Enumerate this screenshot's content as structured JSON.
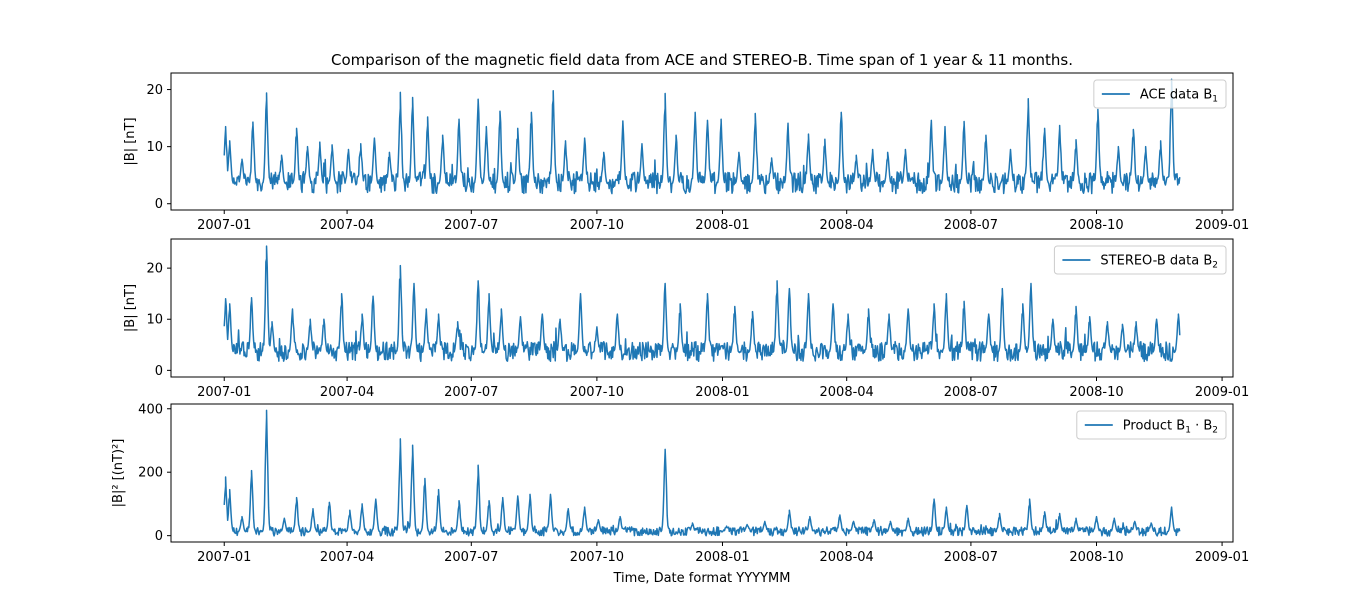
{
  "title": "Comparison of the magnetic field data from ACE and STEREO-B. Time span of 1 year & 11 months.",
  "xlabel": "Time, Date format YYYYMM",
  "colors": {
    "line": "#1f77b4",
    "axes": "#000000",
    "legend_border": "#cccccc"
  },
  "chart_data": [
    {
      "type": "line",
      "ylabel": "|B| [nT]",
      "ylim": [
        -1.1,
        22.9
      ],
      "xlim": [
        "2006-11-23",
        "2009-01-09"
      ],
      "yticks": [
        0,
        10,
        20
      ],
      "xticks": [
        "2007-01",
        "2007-04",
        "2007-07",
        "2007-10",
        "2008-01",
        "2008-04",
        "2008-07",
        "2008-10",
        "2009-01"
      ],
      "legend": {
        "label": "ACE data B",
        "subscript": "1",
        "placement": "upper right"
      },
      "series": [
        {
          "name": "ACE data B1",
          "x_range": [
            "2007-01-01",
            "2008-12-01"
          ],
          "baseline": 3.5,
          "peaks": [
            [
              "2007-01-02",
              13.5
            ],
            [
              "2007-01-05",
              11.0
            ],
            [
              "2007-01-14",
              7.8
            ],
            [
              "2007-01-22",
              14.3
            ],
            [
              "2007-02-01",
              19.4
            ],
            [
              "2007-02-12",
              8.5
            ],
            [
              "2007-02-23",
              13.2
            ],
            [
              "2007-03-03",
              10.0
            ],
            [
              "2007-03-12",
              10.8
            ],
            [
              "2007-03-21",
              10.3
            ],
            [
              "2007-04-02",
              9.5
            ],
            [
              "2007-04-11",
              10.5
            ],
            [
              "2007-04-21",
              11.5
            ],
            [
              "2007-05-02",
              9.0
            ],
            [
              "2007-05-10",
              19.5
            ],
            [
              "2007-05-19",
              18.6
            ],
            [
              "2007-05-30",
              15.2
            ],
            [
              "2007-06-10",
              12.0
            ],
            [
              "2007-06-22",
              14.8
            ],
            [
              "2007-07-06",
              18.3
            ],
            [
              "2007-07-12",
              13.5
            ],
            [
              "2007-07-22",
              16.2
            ],
            [
              "2007-08-04",
              13.2
            ],
            [
              "2007-08-14",
              16.0
            ],
            [
              "2007-08-30",
              19.8
            ],
            [
              "2007-09-08",
              11.0
            ],
            [
              "2007-09-22",
              11.5
            ],
            [
              "2007-10-06",
              9.0
            ],
            [
              "2007-10-20",
              14.5
            ],
            [
              "2007-11-03",
              10.5
            ],
            [
              "2007-11-20",
              19.3
            ],
            [
              "2007-11-28",
              12.0
            ],
            [
              "2007-12-12",
              16.0
            ],
            [
              "2007-12-21",
              14.6
            ],
            [
              "2007-12-31",
              14.8
            ],
            [
              "2008-01-13",
              9.0
            ],
            [
              "2008-01-25",
              15.8
            ],
            [
              "2008-02-06",
              8.0
            ],
            [
              "2008-02-18",
              14.1
            ],
            [
              "2008-03-04",
              12.2
            ],
            [
              "2008-03-16",
              11.3
            ],
            [
              "2008-03-28",
              16.0
            ],
            [
              "2008-04-08",
              8.5
            ],
            [
              "2008-04-20",
              9.5
            ],
            [
              "2008-05-01",
              9.0
            ],
            [
              "2008-05-14",
              9.5
            ],
            [
              "2008-06-02",
              14.6
            ],
            [
              "2008-06-12",
              13.5
            ],
            [
              "2008-06-26",
              14.4
            ],
            [
              "2008-07-12",
              12.0
            ],
            [
              "2008-07-30",
              9.5
            ],
            [
              "2008-08-12",
              18.4
            ],
            [
              "2008-08-24",
              13.2
            ],
            [
              "2008-09-04",
              13.7
            ],
            [
              "2008-09-16",
              11.2
            ],
            [
              "2008-10-02",
              16.5
            ],
            [
              "2008-10-17",
              10.0
            ],
            [
              "2008-10-28",
              13.0
            ],
            [
              "2008-11-06",
              10.0
            ],
            [
              "2008-11-17",
              11.0
            ],
            [
              "2008-11-25",
              21.8
            ]
          ]
        }
      ]
    },
    {
      "type": "line",
      "ylabel": "|B| [nT]",
      "ylim": [
        -1.3,
        25.7
      ],
      "xlim": [
        "2006-11-23",
        "2009-01-09"
      ],
      "yticks": [
        0,
        10,
        20
      ],
      "xticks": [
        "2007-01",
        "2007-04",
        "2007-07",
        "2007-10",
        "2008-01",
        "2008-04",
        "2008-07",
        "2008-10",
        "2009-01"
      ],
      "legend": {
        "label": "STEREO-B data B",
        "subscript": "2",
        "placement": "upper right"
      },
      "series": [
        {
          "name": "STEREO-B data B2",
          "x_range": [
            "2007-01-01",
            "2008-12-01"
          ],
          "baseline": 3.5,
          "peaks": [
            [
              "2007-01-02",
              14.0
            ],
            [
              "2007-01-05",
              13.0
            ],
            [
              "2007-01-21",
              14.2
            ],
            [
              "2007-02-01",
              24.3
            ],
            [
              "2007-02-05",
              9.5
            ],
            [
              "2007-02-20",
              12.0
            ],
            [
              "2007-03-05",
              10.0
            ],
            [
              "2007-03-15",
              10.0
            ],
            [
              "2007-03-28",
              15.0
            ],
            [
              "2007-04-12",
              11.0
            ],
            [
              "2007-04-20",
              14.5
            ],
            [
              "2007-05-10",
              20.5
            ],
            [
              "2007-05-20",
              17.0
            ],
            [
              "2007-05-29",
              12.0
            ],
            [
              "2007-06-07",
              11.0
            ],
            [
              "2007-06-21",
              9.5
            ],
            [
              "2007-07-06",
              17.5
            ],
            [
              "2007-07-14",
              15.0
            ],
            [
              "2007-07-23",
              12.0
            ],
            [
              "2007-08-06",
              10.5
            ],
            [
              "2007-08-22",
              11.0
            ],
            [
              "2007-09-04",
              10.0
            ],
            [
              "2007-09-19",
              15.0
            ],
            [
              "2007-10-01",
              8.5
            ],
            [
              "2007-10-16",
              11.0
            ],
            [
              "2007-11-20",
              17.0
            ],
            [
              "2007-12-01",
              13.0
            ],
            [
              "2007-12-21",
              15.0
            ],
            [
              "2008-01-10",
              12.5
            ],
            [
              "2008-01-23",
              11.5
            ],
            [
              "2008-02-10",
              17.5
            ],
            [
              "2008-02-19",
              16.0
            ],
            [
              "2008-03-04",
              15.0
            ],
            [
              "2008-03-22",
              13.0
            ],
            [
              "2008-04-02",
              11.0
            ],
            [
              "2008-04-17",
              12.0
            ],
            [
              "2008-05-02",
              11.0
            ],
            [
              "2008-05-16",
              12.0
            ],
            [
              "2008-06-04",
              13.0
            ],
            [
              "2008-06-13",
              15.0
            ],
            [
              "2008-06-26",
              13.5
            ],
            [
              "2008-07-14",
              11.0
            ],
            [
              "2008-07-24",
              16.0
            ],
            [
              "2008-08-08",
              13.0
            ],
            [
              "2008-08-14",
              17.0
            ],
            [
              "2008-08-30",
              10.0
            ],
            [
              "2008-09-16",
              12.5
            ],
            [
              "2008-09-26",
              10.5
            ],
            [
              "2008-10-09",
              9.5
            ],
            [
              "2008-10-20",
              9.0
            ],
            [
              "2008-10-30",
              9.5
            ],
            [
              "2008-11-14",
              10.0
            ],
            [
              "2008-11-30",
              11.0
            ]
          ]
        }
      ]
    },
    {
      "type": "line",
      "ylabel": "|B|² [(nT)²]",
      "ylim": [
        -20,
        415
      ],
      "xlim": [
        "2006-11-23",
        "2009-01-09"
      ],
      "yticks": [
        0,
        200,
        400
      ],
      "xticks": [
        "2007-01",
        "2007-04",
        "2007-07",
        "2007-10",
        "2008-01",
        "2008-04",
        "2008-07",
        "2008-10",
        "2009-01"
      ],
      "legend": {
        "label": "Product B",
        "subscript": "1",
        "dot": "·",
        "label2": "B",
        "subscript2": "2",
        "placement": "upper right"
      },
      "series": [
        {
          "name": "Product B1·B2",
          "x_range": [
            "2007-01-01",
            "2008-12-01"
          ],
          "baseline": 12,
          "peaks": [
            [
              "2007-01-02",
              185
            ],
            [
              "2007-01-05",
              145
            ],
            [
              "2007-01-14",
              60
            ],
            [
              "2007-01-21",
              205
            ],
            [
              "2007-02-01",
              395
            ],
            [
              "2007-02-14",
              55
            ],
            [
              "2007-02-23",
              120
            ],
            [
              "2007-03-07",
              85
            ],
            [
              "2007-03-19",
              105
            ],
            [
              "2007-04-03",
              80
            ],
            [
              "2007-04-12",
              100
            ],
            [
              "2007-04-22",
              115
            ],
            [
              "2007-05-10",
              305
            ],
            [
              "2007-05-19",
              285
            ],
            [
              "2007-05-28",
              180
            ],
            [
              "2007-06-07",
              145
            ],
            [
              "2007-06-22",
              110
            ],
            [
              "2007-07-06",
              222
            ],
            [
              "2007-07-14",
              110
            ],
            [
              "2007-07-24",
              120
            ],
            [
              "2007-08-04",
              125
            ],
            [
              "2007-08-13",
              130
            ],
            [
              "2007-08-28",
              130
            ],
            [
              "2007-09-10",
              85
            ],
            [
              "2007-09-22",
              90
            ],
            [
              "2007-10-02",
              50
            ],
            [
              "2007-10-18",
              60
            ],
            [
              "2007-11-20",
              272
            ],
            [
              "2007-12-10",
              40
            ],
            [
              "2008-01-04",
              30
            ],
            [
              "2008-01-19",
              35
            ],
            [
              "2008-02-01",
              45
            ],
            [
              "2008-02-19",
              80
            ],
            [
              "2008-03-05",
              60
            ],
            [
              "2008-03-27",
              65
            ],
            [
              "2008-04-06",
              45
            ],
            [
              "2008-04-21",
              50
            ],
            [
              "2008-05-03",
              45
            ],
            [
              "2008-05-16",
              55
            ],
            [
              "2008-06-04",
              115
            ],
            [
              "2008-06-13",
              90
            ],
            [
              "2008-06-28",
              95
            ],
            [
              "2008-07-22",
              70
            ],
            [
              "2008-08-13",
              115
            ],
            [
              "2008-08-24",
              75
            ],
            [
              "2008-09-04",
              70
            ],
            [
              "2008-09-16",
              55
            ],
            [
              "2008-10-01",
              60
            ],
            [
              "2008-10-14",
              55
            ],
            [
              "2008-10-29",
              45
            ],
            [
              "2008-11-10",
              40
            ],
            [
              "2008-11-25",
              90
            ]
          ]
        }
      ]
    }
  ]
}
